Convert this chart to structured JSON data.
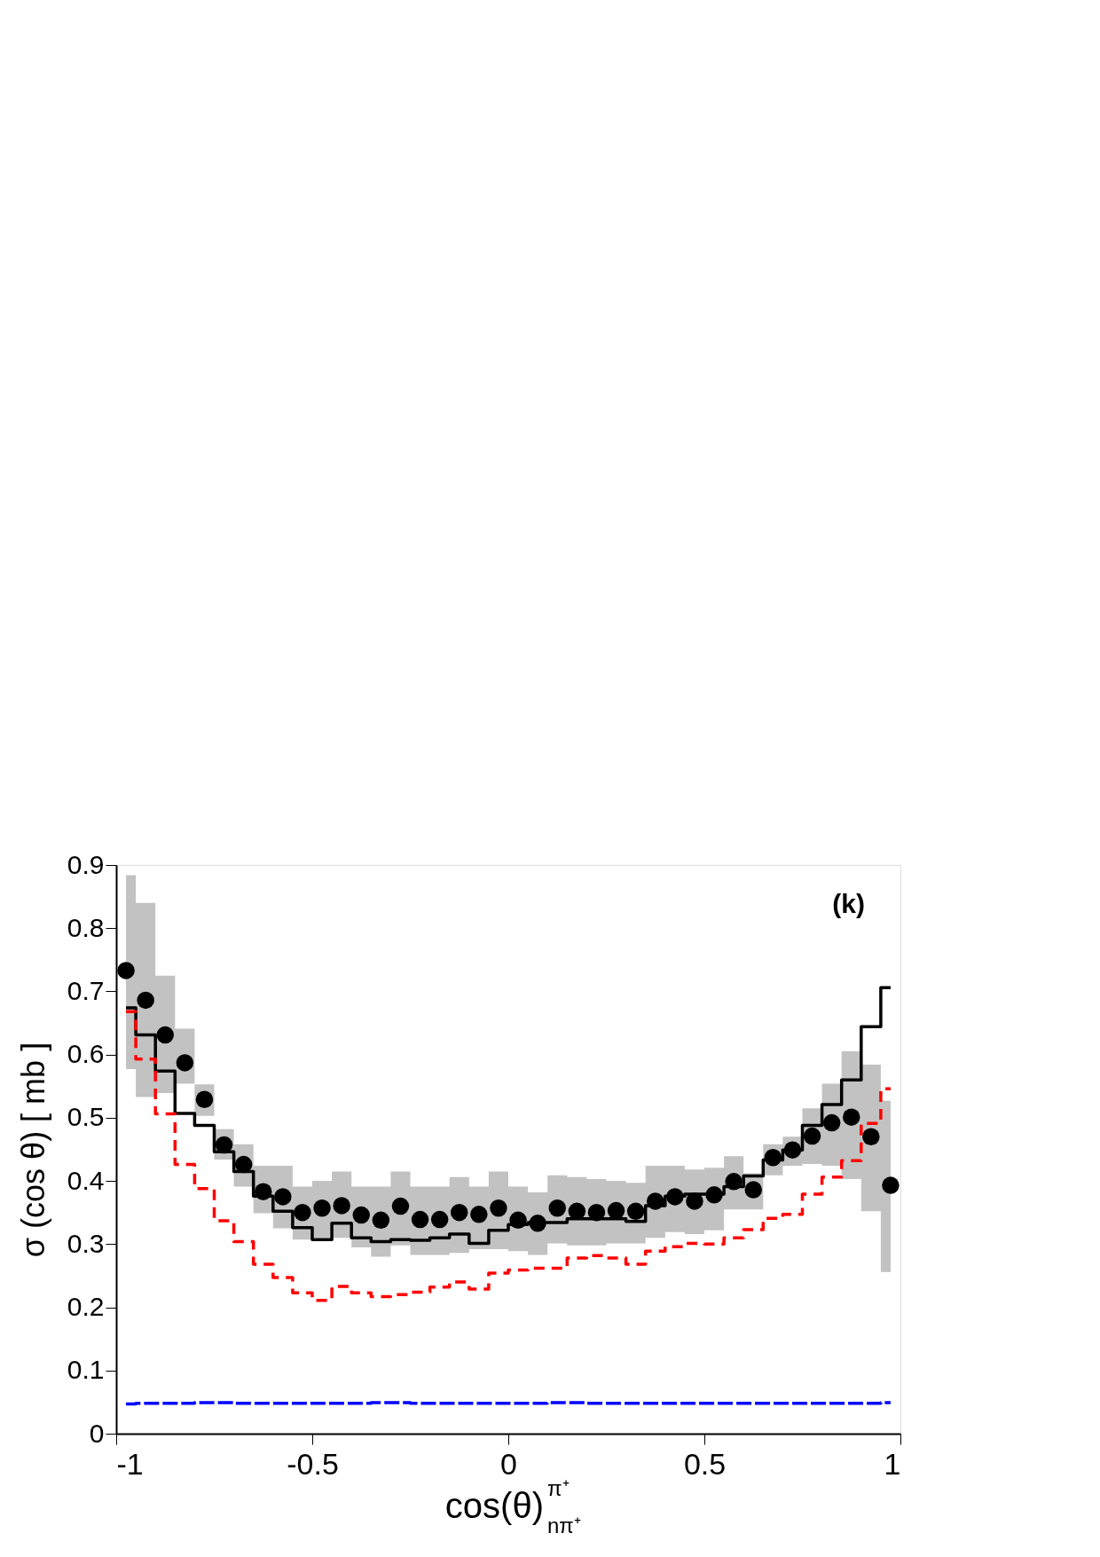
{
  "chart_data": {
    "type": "scatter",
    "xlabel": "cos(θ)$^{π⁺}$$_{nπ⁺}$",
    "ylabel": "σ (cos θ) [ mb ]",
    "annotations": [
      "(k)"
    ],
    "x": [
      -0.975,
      -0.925,
      -0.875,
      -0.825,
      -0.775,
      -0.725,
      -0.675,
      -0.625,
      -0.575,
      -0.525,
      -0.475,
      -0.425,
      -0.375,
      -0.325,
      -0.275,
      -0.225,
      -0.175,
      -0.125,
      -0.075,
      -0.025,
      0.025,
      0.075,
      0.125,
      0.175,
      0.225,
      0.275,
      0.325,
      0.375,
      0.425,
      0.475,
      0.525,
      0.575,
      0.625,
      0.675,
      0.725,
      0.775,
      0.825,
      0.875,
      0.925,
      0.975
    ],
    "series": [
      {
        "color": "#000000",
        "marker": "circle",
        "values": [
          0.733,
          0.686,
          0.631,
          0.587,
          0.529,
          0.457,
          0.426,
          0.383,
          0.375,
          0.35,
          0.357,
          0.361,
          0.346,
          0.338,
          0.36,
          0.339,
          0.339,
          0.35,
          0.347,
          0.357,
          0.338,
          0.333,
          0.357,
          0.352,
          0.35,
          0.353,
          0.352,
          0.368,
          0.375,
          0.368,
          0.378,
          0.399,
          0.386,
          0.437,
          0.449,
          0.471,
          0.492,
          0.501,
          0.47,
          0.393
        ],
        "lower": [
          0.577,
          0.533,
          0.539,
          0.554,
          0.503,
          0.434,
          0.391,
          0.349,
          0.325,
          0.307,
          0.31,
          0.31,
          0.295,
          0.28,
          0.298,
          0.283,
          0.283,
          0.286,
          0.292,
          0.292,
          0.289,
          0.283,
          0.301,
          0.298,
          0.298,
          0.301,
          0.301,
          0.31,
          0.319,
          0.316,
          0.322,
          0.355,
          0.355,
          0.409,
          0.424,
          0.427,
          0.424,
          0.403,
          0.352,
          0.256
        ],
        "upper": [
          0.884,
          0.84,
          0.725,
          0.641,
          0.553,
          0.482,
          0.458,
          0.424,
          0.424,
          0.391,
          0.4,
          0.415,
          0.391,
          0.391,
          0.415,
          0.391,
          0.391,
          0.406,
          0.391,
          0.415,
          0.391,
          0.382,
          0.409,
          0.406,
          0.403,
          0.4,
          0.397,
          0.424,
          0.424,
          0.418,
          0.421,
          0.439,
          0.412,
          0.458,
          0.47,
          0.515,
          0.554,
          0.605,
          0.584,
          0.527
        ]
      },
      {
        "type": "step",
        "color": "#000000",
        "line_style": "solid",
        "values": [
          0.674,
          0.631,
          0.574,
          0.507,
          0.488,
          0.446,
          0.415,
          0.376,
          0.352,
          0.326,
          0.307,
          0.333,
          0.31,
          0.304,
          0.307,
          0.306,
          0.31,
          0.316,
          0.301,
          0.322,
          0.331,
          0.334,
          0.334,
          0.34,
          0.34,
          0.34,
          0.336,
          0.361,
          0.376,
          0.379,
          0.379,
          0.391,
          0.408,
          0.433,
          0.449,
          0.488,
          0.521,
          0.56,
          0.644,
          0.706
        ]
      },
      {
        "type": "step",
        "color": "#ff0000",
        "line_style": "dashed",
        "values": [
          0.668,
          0.593,
          0.506,
          0.426,
          0.388,
          0.337,
          0.304,
          0.268,
          0.247,
          0.223,
          0.211,
          0.233,
          0.223,
          0.217,
          0.22,
          0.224,
          0.232,
          0.24,
          0.229,
          0.254,
          0.259,
          0.262,
          0.262,
          0.278,
          0.282,
          0.278,
          0.268,
          0.289,
          0.296,
          0.301,
          0.3,
          0.31,
          0.323,
          0.341,
          0.347,
          0.379,
          0.406,
          0.432,
          0.491,
          0.546
        ]
      },
      {
        "type": "step",
        "color": "#0000ff",
        "line_style": "longdashed",
        "values": [
          0.047,
          0.048,
          0.048,
          0.048,
          0.049,
          0.049,
          0.048,
          0.048,
          0.048,
          0.048,
          0.048,
          0.048,
          0.048,
          0.049,
          0.049,
          0.048,
          0.048,
          0.048,
          0.048,
          0.048,
          0.048,
          0.048,
          0.049,
          0.049,
          0.048,
          0.048,
          0.048,
          0.048,
          0.048,
          0.048,
          0.048,
          0.048,
          0.048,
          0.048,
          0.048,
          0.048,
          0.048,
          0.048,
          0.048,
          0.049
        ]
      }
    ],
    "xlim": [
      -1,
      1
    ],
    "xticks": [
      -1,
      -0.5,
      0,
      0.5,
      1
    ],
    "ylim": [
      0,
      0.9
    ],
    "yticks": [
      0,
      0.1,
      0.2,
      0.3,
      0.4,
      0.5,
      0.6,
      0.7,
      0.8,
      0.9
    ],
    "grid": false
  }
}
